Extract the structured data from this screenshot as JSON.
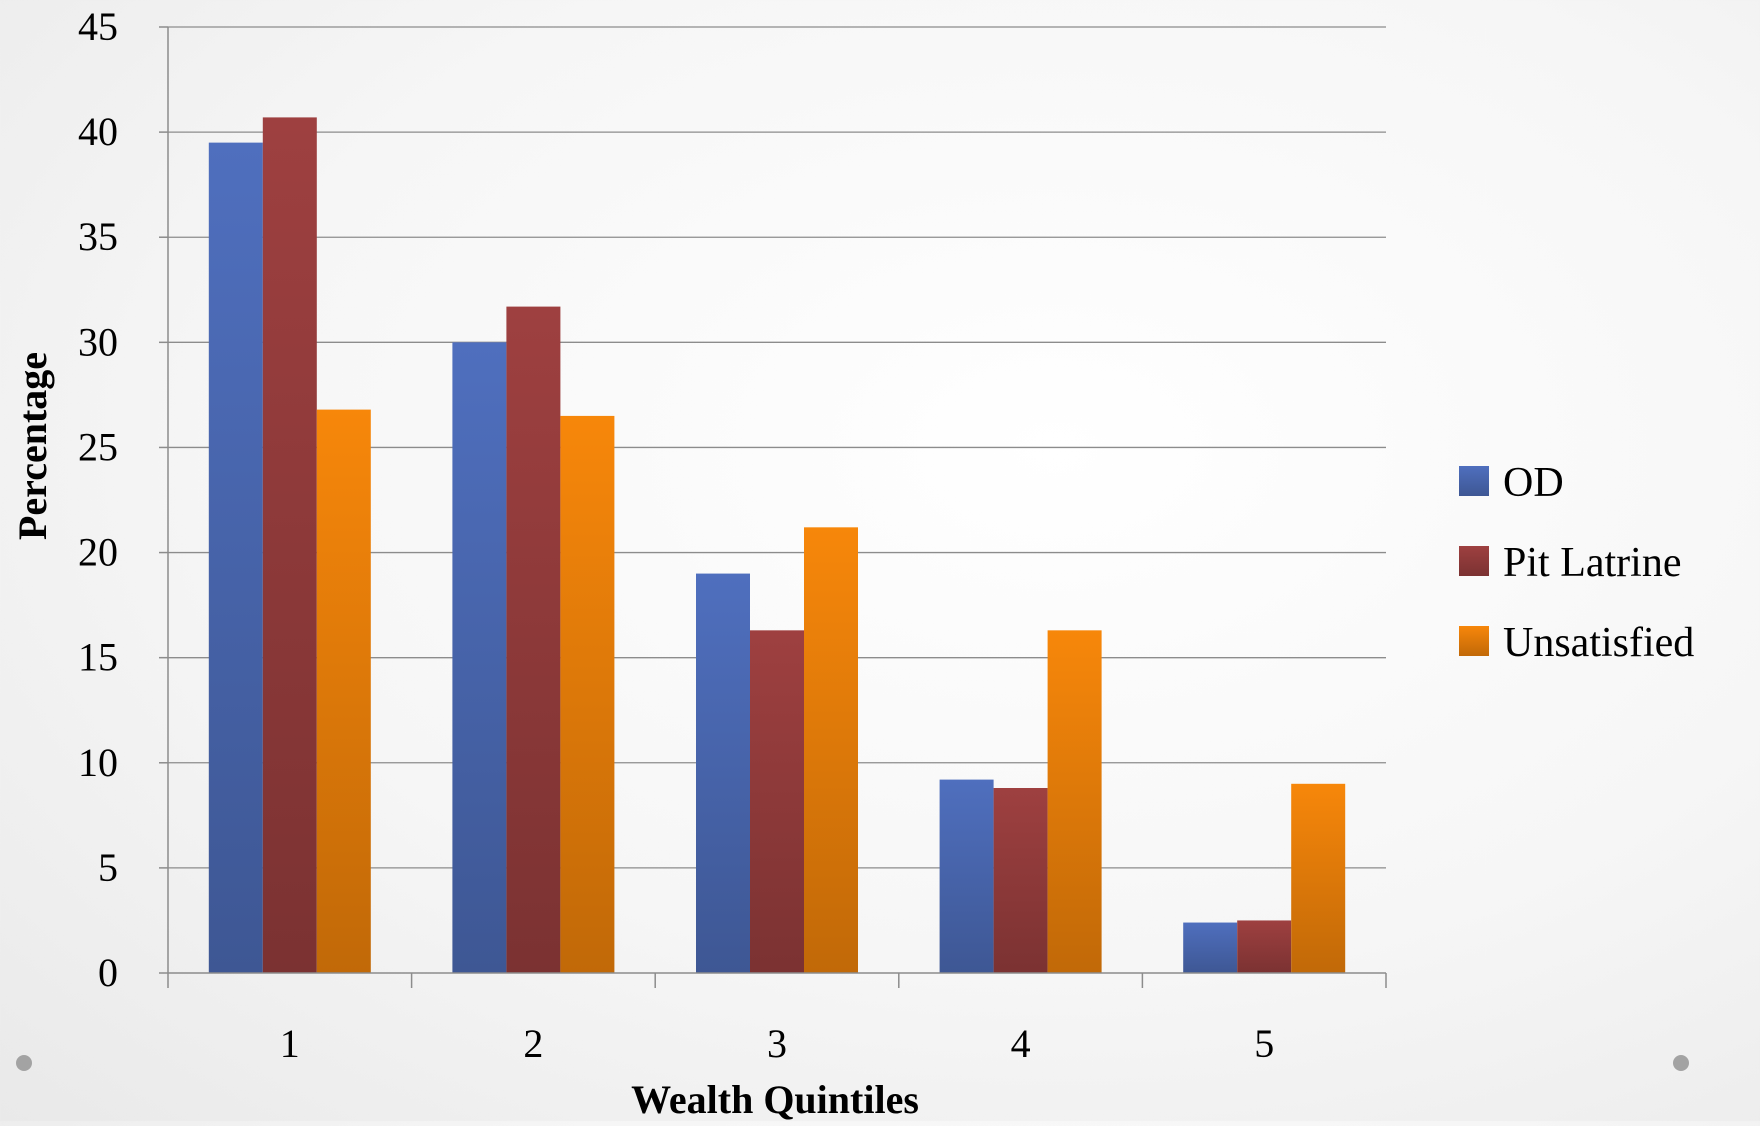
{
  "chart_data": {
    "type": "bar",
    "title": "",
    "xlabel": "Wealth Quintiles",
    "ylabel": "Percentage",
    "categories": [
      "1",
      "2",
      "3",
      "4",
      "5"
    ],
    "series": [
      {
        "name": "OD",
        "values": [
          39.5,
          30.0,
          19.0,
          9.2,
          2.4
        ],
        "color": "#4f6fbe"
      },
      {
        "name": "Pit Latrine",
        "values": [
          40.7,
          31.7,
          16.3,
          8.8,
          2.5
        ],
        "color": "#9e4040"
      },
      {
        "name": "Unsatisfied",
        "values": [
          26.8,
          26.5,
          21.2,
          16.3,
          9.0
        ],
        "color": "#f7870a"
      }
    ],
    "ylim": [
      0,
      45
    ],
    "yticks": [
      "0",
      "5",
      "10",
      "15",
      "20",
      "25",
      "30",
      "35",
      "40",
      "45"
    ],
    "grid": true,
    "legend_position": "right"
  }
}
